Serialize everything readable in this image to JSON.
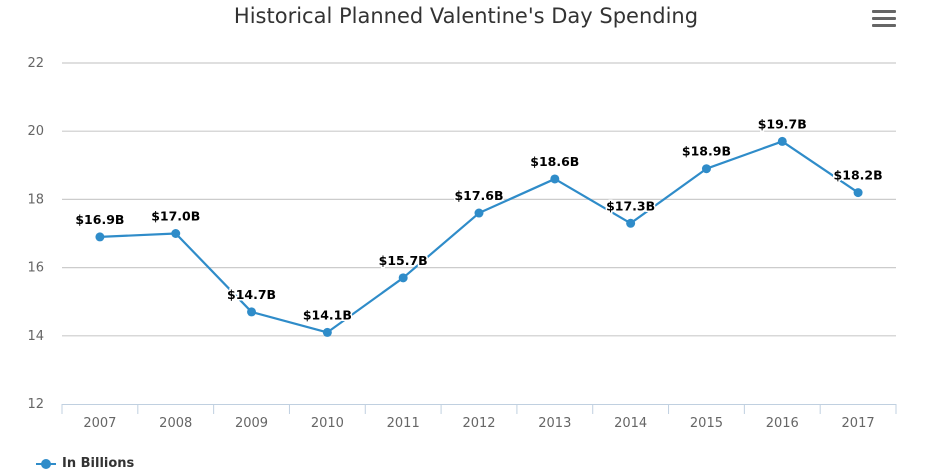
{
  "title": "Historical Planned Valentine's Day Spending",
  "chart_data": {
    "type": "line",
    "title": "Historical Planned Valentine's Day Spending",
    "categories": [
      "2007",
      "2008",
      "2009",
      "2010",
      "2011",
      "2012",
      "2013",
      "2014",
      "2015",
      "2016",
      "2017"
    ],
    "series": [
      {
        "name": "In Billions",
        "values": [
          16.9,
          17.0,
          14.7,
          14.1,
          15.7,
          17.6,
          18.6,
          17.3,
          18.9,
          19.7,
          18.2
        ],
        "labels": [
          "$16.9B",
          "$17.0B",
          "$14.7B",
          "$14.1B",
          "$15.7B",
          "$17.6B",
          "$18.6B",
          "$17.3B",
          "$18.9B",
          "$19.7B",
          "$18.2B"
        ],
        "color": "#2f8cc9"
      }
    ],
    "ylim": [
      12,
      22
    ],
    "yticks": [
      12,
      14,
      16,
      18,
      20,
      22
    ],
    "grid": true,
    "legend_position": "bottom-left"
  },
  "toolbar": {
    "menu_icon": "hamburger-menu-icon"
  },
  "colors": {
    "series": "#2f8cc9",
    "grid": "#cccccc",
    "axis": "#c0d0e0",
    "text": "#333333"
  }
}
